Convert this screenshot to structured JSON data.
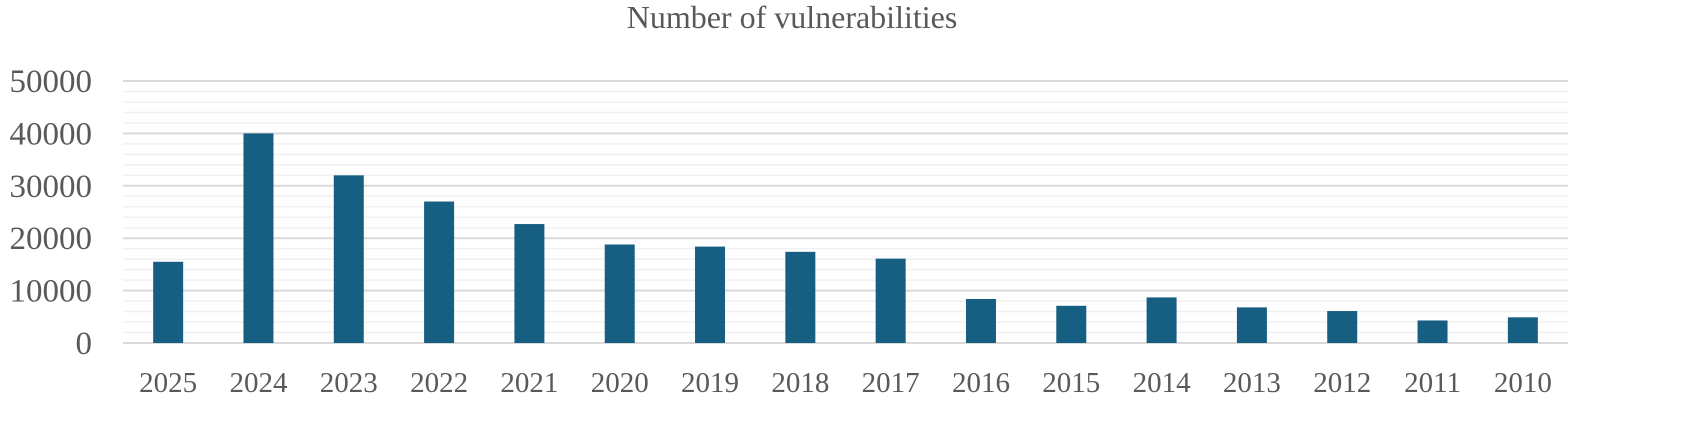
{
  "chart_data": {
    "type": "bar",
    "title": "Number of vulnerabilities",
    "categories": [
      "2025",
      "2024",
      "2023",
      "2022",
      "2021",
      "2020",
      "2019",
      "2018",
      "2017",
      "2016",
      "2015",
      "2014",
      "2013",
      "2012",
      "2011",
      "2010"
    ],
    "values": [
      15500,
      40000,
      32000,
      27000,
      22700,
      18800,
      18400,
      17400,
      16100,
      8400,
      7100,
      8700,
      6800,
      6100,
      4300,
      4900
    ],
    "xlabel": "",
    "ylabel": "",
    "ylim": [
      0,
      50000
    ],
    "yticks": [
      "0",
      "10000",
      "20000",
      "30000",
      "40000",
      "50000"
    ],
    "grid": true,
    "legend": "none",
    "bar_color": "#165f82"
  }
}
